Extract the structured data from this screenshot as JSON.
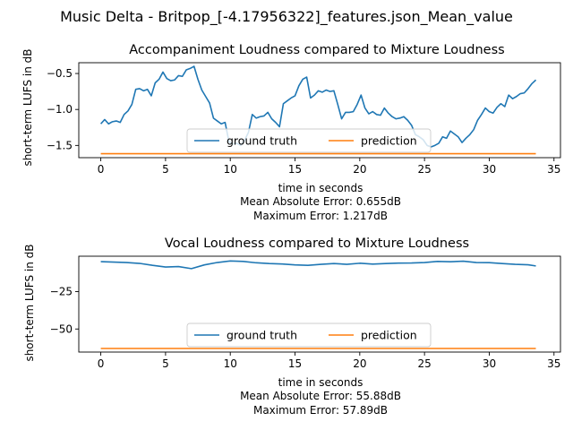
{
  "suptitle": "Music Delta - Britpop_[-4.17956322]_features.json_Mean_value",
  "colors": {
    "ground_truth": "#1f77b4",
    "prediction": "#ff7f0e"
  },
  "chart_data": [
    {
      "type": "line",
      "title": "Accompaniment Loudness compared to Mixture Loudness",
      "xlabel": "time in seconds",
      "ylabel": "short-term LUFS in dB",
      "xlim": [
        -1.7,
        35.5
      ],
      "ylim": [
        -1.67,
        -0.35
      ],
      "xticks": [
        0,
        5,
        10,
        15,
        20,
        25,
        30,
        35
      ],
      "yticks": [
        -1.5,
        -1.0,
        -0.5
      ],
      "ytick_labels": [
        "−1.5",
        "−1.0",
        "−0.5"
      ],
      "legend": {
        "placement": "lower center",
        "entries": [
          "ground truth",
          "prediction"
        ]
      },
      "stats": [
        "Mean Absolute Error: 0.655dB",
        "Maximum Error: 1.217dB"
      ],
      "series": [
        {
          "name": "ground truth",
          "x": [
            0,
            0.3,
            0.6,
            0.9,
            1.2,
            1.5,
            1.8,
            2.1,
            2.4,
            2.7,
            3.0,
            3.3,
            3.6,
            3.9,
            4.2,
            4.5,
            4.8,
            5.1,
            5.4,
            5.7,
            6.0,
            6.3,
            6.6,
            6.9,
            7.2,
            7.5,
            7.8,
            8.1,
            8.4,
            8.7,
            9.0,
            9.3,
            9.6,
            9.9,
            10.2,
            10.5,
            10.8,
            11.1,
            11.4,
            11.7,
            12.0,
            12.3,
            12.6,
            12.9,
            13.2,
            13.5,
            13.8,
            14.1,
            14.4,
            14.7,
            15.0,
            15.3,
            15.6,
            15.9,
            16.2,
            16.5,
            16.8,
            17.1,
            17.4,
            17.7,
            18.0,
            18.3,
            18.6,
            18.9,
            19.2,
            19.5,
            19.8,
            20.1,
            20.4,
            20.7,
            21.0,
            21.3,
            21.6,
            21.9,
            22.2,
            22.5,
            22.8,
            23.1,
            23.4,
            23.7,
            24.0,
            24.3,
            24.6,
            24.9,
            25.2,
            25.5,
            25.8,
            26.1,
            26.4,
            26.7,
            27.0,
            27.3,
            27.6,
            27.9,
            28.2,
            28.5,
            28.8,
            29.1,
            29.4,
            29.7,
            30.0,
            30.3,
            30.6,
            30.9,
            31.2,
            31.5,
            31.8,
            32.1,
            32.4,
            32.7,
            33.0,
            33.3,
            33.6
          ],
          "y": [
            -1.2,
            -1.14,
            -1.2,
            -1.17,
            -1.16,
            -1.18,
            -1.07,
            -1.02,
            -0.93,
            -0.72,
            -0.71,
            -0.74,
            -0.72,
            -0.81,
            -0.63,
            -0.58,
            -0.48,
            -0.57,
            -0.6,
            -0.59,
            -0.53,
            -0.54,
            -0.45,
            -0.43,
            -0.4,
            -0.58,
            -0.73,
            -0.82,
            -0.91,
            -1.12,
            -1.16,
            -1.2,
            -1.18,
            -1.45,
            -1.48,
            -1.47,
            -1.5,
            -1.43,
            -1.32,
            -1.07,
            -1.12,
            -1.1,
            -1.09,
            -1.04,
            -1.13,
            -1.18,
            -1.24,
            -0.92,
            -0.88,
            -0.84,
            -0.81,
            -0.67,
            -0.58,
            -0.55,
            -0.84,
            -0.8,
            -0.74,
            -0.76,
            -0.73,
            -0.75,
            -0.74,
            -0.93,
            -1.13,
            -1.04,
            -1.04,
            -1.03,
            -0.93,
            -0.8,
            -0.98,
            -1.06,
            -1.03,
            -1.07,
            -1.08,
            -0.98,
            -1.05,
            -1.1,
            -1.13,
            -1.12,
            -1.1,
            -1.15,
            -1.22,
            -1.35,
            -1.38,
            -1.42,
            -1.5,
            -1.52,
            -1.5,
            -1.47,
            -1.38,
            -1.4,
            -1.3,
            -1.34,
            -1.38,
            -1.46,
            -1.4,
            -1.35,
            -1.28,
            -1.15,
            -1.07,
            -0.98,
            -1.03,
            -1.05,
            -0.97,
            -0.92,
            -0.96,
            -0.8,
            -0.85,
            -0.82,
            -0.78,
            -0.77,
            -0.71,
            -0.64,
            -0.59
          ]
        },
        {
          "name": "prediction",
          "x": [
            0,
            33.6
          ],
          "y": [
            -1.615,
            -1.615
          ]
        }
      ]
    },
    {
      "type": "line",
      "title": "Vocal Loudness compared to Mixture Loudness",
      "xlabel": "time in seconds",
      "ylabel": "short-term LUFS in dB",
      "xlim": [
        -1.7,
        35.5
      ],
      "ylim": [
        -65.4,
        -1.4
      ],
      "xticks": [
        0,
        5,
        10,
        15,
        20,
        25,
        30,
        35
      ],
      "yticks": [
        -50,
        -25
      ],
      "ytick_labels": [
        "−50",
        "−25"
      ],
      "legend": {
        "placement": "lower center",
        "entries": [
          "ground truth",
          "prediction"
        ]
      },
      "stats": [
        "Mean Absolute Error: 55.88dB",
        "Maximum Error: 57.89dB"
      ],
      "series": [
        {
          "name": "ground truth",
          "x": [
            0,
            1,
            2,
            3,
            4,
            5,
            6,
            7,
            8,
            9,
            10,
            11,
            12,
            13,
            14,
            15,
            16,
            17,
            18,
            19,
            20,
            21,
            22,
            23,
            24,
            25,
            26,
            27,
            28,
            29,
            30,
            31,
            32,
            33,
            33.6
          ],
          "y": [
            -5.0,
            -5.3,
            -5.6,
            -6.2,
            -7.5,
            -8.6,
            -8.3,
            -9.7,
            -7.2,
            -5.6,
            -4.6,
            -4.9,
            -5.8,
            -6.3,
            -6.6,
            -7.2,
            -7.5,
            -6.8,
            -6.3,
            -6.8,
            -6.1,
            -6.7,
            -6.3,
            -6.0,
            -5.9,
            -5.6,
            -4.9,
            -5.1,
            -4.7,
            -5.6,
            -5.7,
            -6.3,
            -6.8,
            -7.1,
            -7.9
          ]
        },
        {
          "name": "prediction",
          "x": [
            0,
            33.6
          ],
          "y": [
            -63.0,
            -63.0
          ]
        }
      ]
    }
  ]
}
